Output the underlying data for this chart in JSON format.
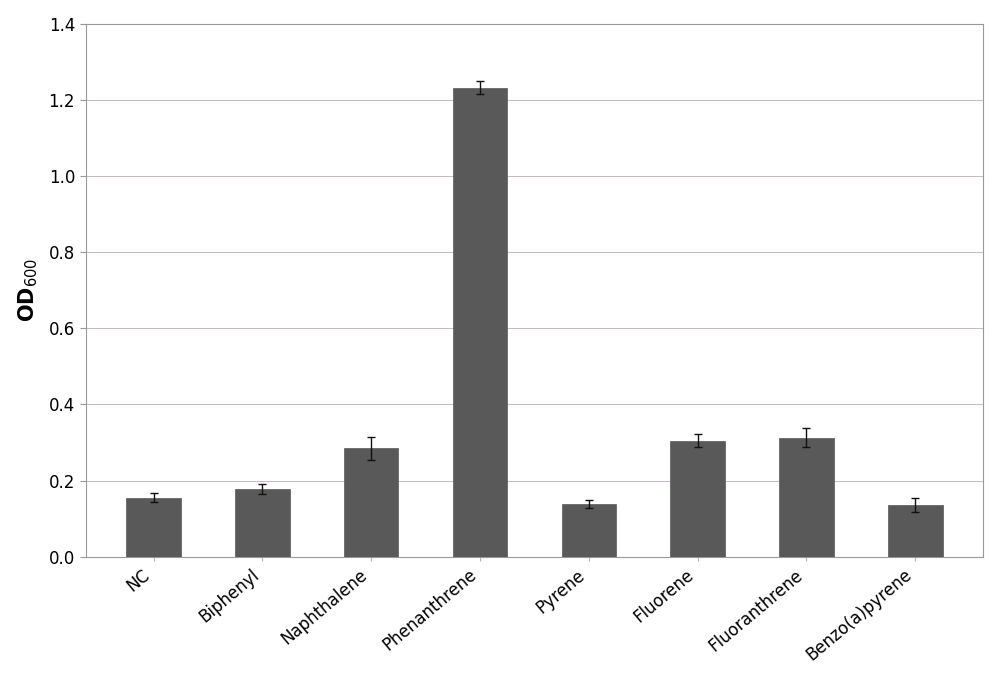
{
  "categories": [
    "NC",
    "Biphenyl",
    "Naphthalene",
    "Phenanthrene",
    "Pyrene",
    "Fluorene",
    "Fluoranthrene",
    "Benzo(a)pyrene"
  ],
  "values": [
    0.155,
    0.178,
    0.285,
    1.232,
    0.138,
    0.305,
    0.312,
    0.135
  ],
  "errors": [
    0.012,
    0.012,
    0.03,
    0.018,
    0.01,
    0.018,
    0.025,
    0.018
  ],
  "bar_color": "#595959",
  "bar_edgecolor": "#595959",
  "background_color": "#ffffff",
  "ylabel": "OD$_{600}$",
  "ylabel_fontsize": 15,
  "tick_fontsize": 12,
  "xlabel_rotation": 40,
  "ylim": [
    0,
    1.4
  ],
  "yticks": [
    0,
    0.2,
    0.4,
    0.6,
    0.8,
    1.0,
    1.2,
    1.4
  ],
  "grid_color": "#c8b8c8",
  "error_capsize": 3,
  "error_color": "#111111",
  "bar_width": 0.5,
  "spine_color": "#999999"
}
